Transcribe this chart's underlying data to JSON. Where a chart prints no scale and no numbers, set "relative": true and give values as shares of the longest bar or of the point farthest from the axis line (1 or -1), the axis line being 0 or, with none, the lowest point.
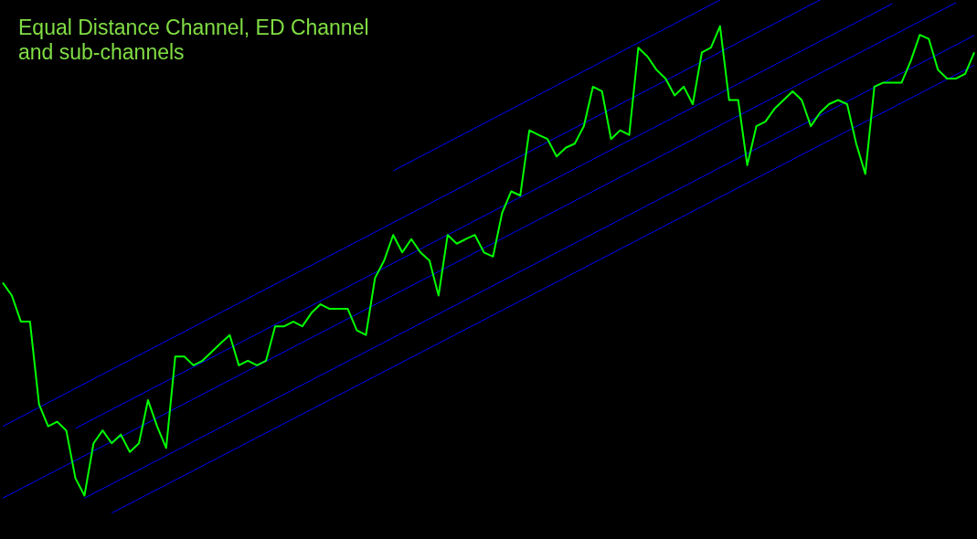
{
  "chart_data": {
    "type": "line",
    "title": "Equal Distance Channel, ED Channel and sub-channels",
    "relative": true,
    "legend": false,
    "marker": "none",
    "categories": [
      null,
      null,
      null,
      null,
      null,
      null,
      null,
      null,
      null,
      null,
      null,
      null,
      null,
      null,
      null,
      null,
      null,
      null,
      null,
      null,
      null,
      null,
      null,
      null,
      null,
      null,
      null,
      null,
      null,
      null,
      null,
      null,
      null,
      null,
      null,
      null,
      null,
      null,
      null,
      null,
      null,
      null,
      null,
      null,
      null,
      null,
      null,
      null,
      null,
      null,
      null,
      null,
      null,
      null,
      null,
      null,
      null,
      null,
      null,
      null,
      null,
      null,
      null,
      null,
      null,
      null,
      null,
      null,
      null,
      null,
      null,
      null,
      null,
      null,
      null,
      null,
      null,
      null,
      null,
      null,
      null,
      null,
      null,
      null,
      null,
      null,
      null,
      null,
      null,
      null,
      null,
      null,
      null,
      null,
      null,
      null,
      null,
      null,
      null,
      null,
      null,
      null,
      null,
      null,
      null,
      null,
      null,
      null
    ],
    "series": [
      {
        "color": "#00ff00",
        "values": [
          0.449,
          0.424,
          0.373,
          0.373,
          0.212,
          0.169,
          0.178,
          0.161,
          0.068,
          0.034,
          0.136,
          0.161,
          0.136,
          0.153,
          0.119,
          0.136,
          0.22,
          0.169,
          0.127,
          0.305,
          0.305,
          0.288,
          0.297,
          0.314,
          0.331,
          0.347,
          0.288,
          0.297,
          0.288,
          0.297,
          0.364,
          0.364,
          0.373,
          0.364,
          0.39,
          0.407,
          0.398,
          0.398,
          0.398,
          0.356,
          0.347,
          0.458,
          0.492,
          0.542,
          0.508,
          0.534,
          0.508,
          0.492,
          0.424,
          0.542,
          0.525,
          0.534,
          0.542,
          0.508,
          0.5,
          0.585,
          0.627,
          0.619,
          0.746,
          0.737,
          0.729,
          0.695,
          0.712,
          0.72,
          0.754,
          0.831,
          0.822,
          0.729,
          0.746,
          0.737,
          0.907,
          0.89,
          0.864,
          0.847,
          0.814,
          0.831,
          0.797,
          0.898,
          0.907,
          0.949,
          0.805,
          0.805,
          0.678,
          0.754,
          0.763,
          0.788,
          0.805,
          0.822,
          0.805,
          0.754,
          0.78,
          0.797,
          0.805,
          0.797,
          0.72,
          0.661,
          0.831,
          0.839,
          0.839,
          0.839,
          0.881,
          0.932,
          0.924,
          0.864,
          0.847,
          0.847,
          0.856,
          0.898
        ]
      },
      {
        "color": "#0000ff",
        "values": [
          null,
          null,
          null,
          null,
          null,
          null,
          null,
          null,
          null,
          null,
          null,
          null,
          null,
          null,
          null,
          null,
          null,
          null,
          null,
          null,
          null,
          null,
          null,
          null,
          null,
          null,
          null,
          null,
          null,
          null,
          null,
          null,
          null,
          null,
          null,
          null,
          null,
          null,
          null,
          null,
          null,
          null,
          null,
          0.667,
          null,
          null,
          null,
          null,
          null,
          null,
          null,
          null,
          null,
          null,
          null,
          null,
          null,
          null,
          null,
          null,
          null,
          null,
          null,
          null,
          null,
          null,
          null,
          null,
          null,
          null,
          null,
          null,
          null,
          null,
          null,
          null,
          null,
          null,
          null,
          1.0,
          null,
          null,
          null,
          null,
          null,
          null,
          null,
          null,
          null,
          null,
          null,
          null,
          null,
          null,
          null,
          null,
          null,
          null,
          null,
          null,
          null,
          null,
          null,
          null,
          null,
          null,
          null,
          null
        ]
      },
      {
        "color": "#0000ff",
        "values": [
          0.169,
          null,
          null,
          null,
          null,
          null,
          null,
          null,
          null,
          null,
          null,
          null,
          null,
          null,
          null,
          null,
          null,
          null,
          null,
          null,
          null,
          null,
          null,
          null,
          null,
          null,
          null,
          null,
          null,
          null,
          null,
          null,
          null,
          null,
          null,
          null,
          null,
          null,
          null,
          null,
          null,
          null,
          null,
          null,
          null,
          null,
          null,
          null,
          null,
          null,
          null,
          null,
          null,
          null,
          null,
          null,
          null,
          null,
          null,
          null,
          null,
          null,
          null,
          null,
          null,
          null,
          null,
          null,
          null,
          null,
          null,
          null,
          null,
          null,
          null,
          null,
          null,
          null,
          null,
          null,
          null,
          null,
          null,
          null,
          null,
          null,
          null,
          null,
          null,
          null,
          1.0,
          null,
          null,
          null,
          null,
          null,
          null,
          null,
          null,
          null,
          null,
          null,
          null,
          null,
          null,
          null,
          null,
          null
        ]
      },
      {
        "color": "#0000ff",
        "values": [
          null,
          null,
          null,
          null,
          null,
          null,
          null,
          null,
          0.165,
          null,
          null,
          null,
          null,
          null,
          null,
          null,
          null,
          null,
          null,
          null,
          null,
          null,
          null,
          null,
          null,
          null,
          null,
          null,
          null,
          null,
          null,
          null,
          null,
          null,
          null,
          null,
          null,
          null,
          null,
          null,
          null,
          null,
          null,
          null,
          null,
          null,
          null,
          null,
          null,
          null,
          null,
          null,
          null,
          null,
          null,
          null,
          null,
          null,
          null,
          null,
          null,
          null,
          null,
          null,
          null,
          null,
          null,
          null,
          null,
          null,
          null,
          null,
          null,
          null,
          null,
          null,
          null,
          null,
          null,
          null,
          null,
          null,
          null,
          null,
          null,
          null,
          null,
          null,
          null,
          null,
          null,
          null,
          null,
          null,
          null,
          null,
          null,
          null,
          0.993,
          null,
          null,
          null,
          null,
          null,
          null,
          null,
          null,
          null
        ]
      },
      {
        "color": "#0000ff",
        "values": [
          0.029,
          null,
          null,
          null,
          null,
          null,
          null,
          null,
          null,
          null,
          null,
          null,
          null,
          null,
          null,
          null,
          null,
          null,
          null,
          null,
          null,
          null,
          null,
          null,
          null,
          null,
          null,
          null,
          null,
          null,
          null,
          null,
          null,
          null,
          null,
          null,
          null,
          null,
          null,
          null,
          null,
          null,
          null,
          null,
          null,
          null,
          null,
          null,
          null,
          null,
          null,
          null,
          null,
          null,
          null,
          null,
          null,
          null,
          null,
          null,
          null,
          null,
          null,
          null,
          null,
          null,
          null,
          null,
          null,
          null,
          null,
          null,
          null,
          null,
          null,
          null,
          null,
          null,
          null,
          null,
          null,
          null,
          null,
          null,
          null,
          null,
          null,
          null,
          null,
          null,
          null,
          null,
          null,
          null,
          null,
          null,
          null,
          null,
          null,
          null,
          null,
          null,
          null,
          null,
          null,
          0.995,
          null,
          null
        ]
      },
      {
        "color": "#0000ff",
        "values": [
          null,
          null,
          null,
          null,
          null,
          null,
          null,
          null,
          null,
          0.029,
          null,
          null,
          null,
          null,
          null,
          null,
          null,
          null,
          null,
          null,
          null,
          null,
          null,
          null,
          null,
          null,
          null,
          null,
          null,
          null,
          null,
          null,
          null,
          null,
          null,
          null,
          null,
          null,
          null,
          null,
          null,
          null,
          null,
          null,
          null,
          null,
          null,
          null,
          null,
          null,
          null,
          null,
          null,
          null,
          null,
          null,
          null,
          null,
          null,
          null,
          null,
          null,
          null,
          null,
          null,
          null,
          null,
          null,
          null,
          null,
          null,
          null,
          null,
          null,
          null,
          null,
          null,
          null,
          null,
          null,
          null,
          null,
          null,
          null,
          null,
          null,
          null,
          null,
          null,
          null,
          null,
          null,
          null,
          null,
          null,
          null,
          null,
          null,
          null,
          null,
          null,
          null,
          null,
          null,
          null,
          null,
          null,
          0.931
        ]
      },
      {
        "color": "#0000ff",
        "values": [
          null,
          null,
          null,
          null,
          null,
          null,
          null,
          null,
          null,
          null,
          null,
          null,
          0,
          null,
          null,
          null,
          null,
          null,
          null,
          null,
          null,
          null,
          null,
          null,
          null,
          null,
          null,
          null,
          null,
          null,
          null,
          null,
          null,
          null,
          null,
          null,
          null,
          null,
          null,
          null,
          null,
          null,
          null,
          null,
          null,
          null,
          null,
          null,
          null,
          null,
          null,
          null,
          null,
          null,
          null,
          null,
          null,
          null,
          null,
          null,
          null,
          null,
          null,
          null,
          null,
          null,
          null,
          null,
          null,
          null,
          null,
          null,
          null,
          null,
          null,
          null,
          null,
          null,
          null,
          null,
          null,
          null,
          null,
          null,
          null,
          null,
          null,
          null,
          null,
          null,
          null,
          null,
          null,
          null,
          null,
          null,
          null,
          null,
          null,
          null,
          null,
          null,
          null,
          null,
          null,
          null,
          null,
          0.873
        ]
      }
    ]
  }
}
